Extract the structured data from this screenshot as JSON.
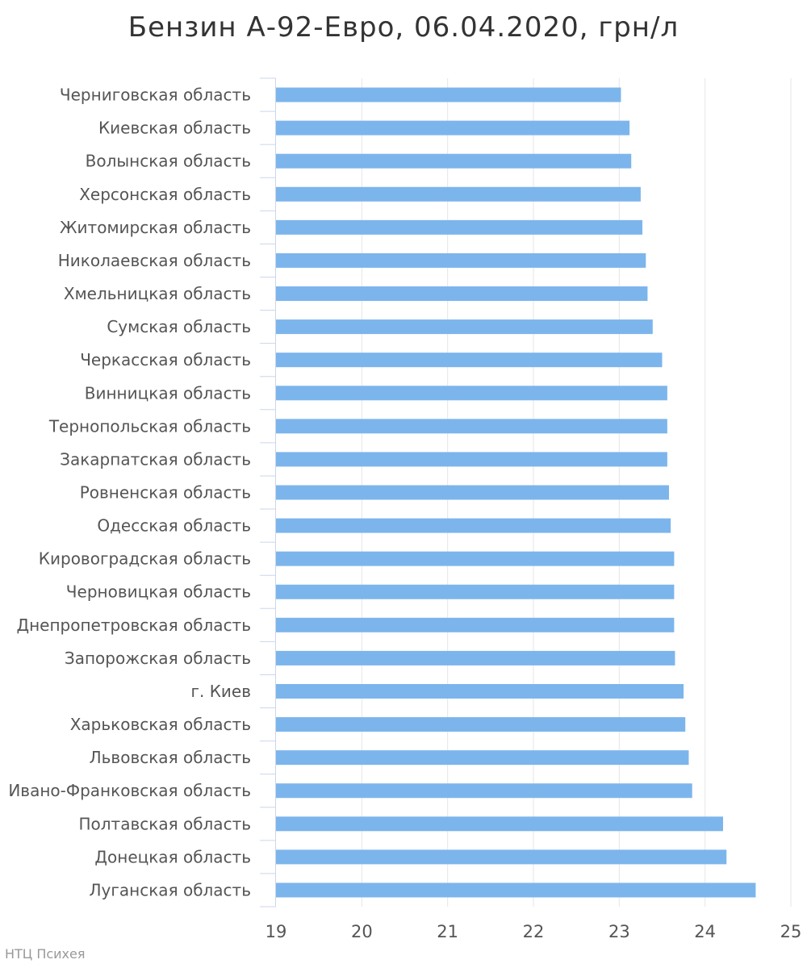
{
  "chart_data": {
    "type": "bar",
    "orientation": "horizontal",
    "title": "Бензин А-92-Евро, 06.04.2020, грн/л",
    "categories": [
      "Черниговская область",
      "Киевская область",
      "Волынская область",
      "Херсонская область",
      "Житомирская область",
      "Николаевская область",
      "Хмельницкая область",
      "Сумская область",
      "Черкасская область",
      "Винницкая область",
      "Тернопольская область",
      "Закарпатская область",
      "Ровненская область",
      "Одесская область",
      "Кировоградская область",
      "Черновицкая область",
      "Днепропетровская область",
      "Запорожская область",
      "г. Киев",
      "Харьковская область",
      "Львовская область",
      "Ивано-Франковская область",
      "Полтавская область",
      "Донецкая область",
      "Луганская область"
    ],
    "values": [
      23.02,
      23.12,
      23.14,
      23.25,
      23.27,
      23.31,
      23.33,
      23.39,
      23.5,
      23.56,
      23.56,
      23.56,
      23.58,
      23.6,
      23.64,
      23.64,
      23.64,
      23.65,
      23.75,
      23.77,
      23.81,
      23.85,
      24.21,
      24.25,
      24.59
    ],
    "xlim": [
      19,
      25
    ],
    "ticks": [
      "19",
      "20",
      "21",
      "22",
      "23",
      "24",
      "25"
    ],
    "xlabel": "",
    "ylabel": "",
    "grid": true,
    "legend": "none",
    "bar_color": "#7cb5ec",
    "gridline_color": "#e6e6e6",
    "axis_color": "#ccd6eb"
  },
  "credit": "НТЦ Психея"
}
